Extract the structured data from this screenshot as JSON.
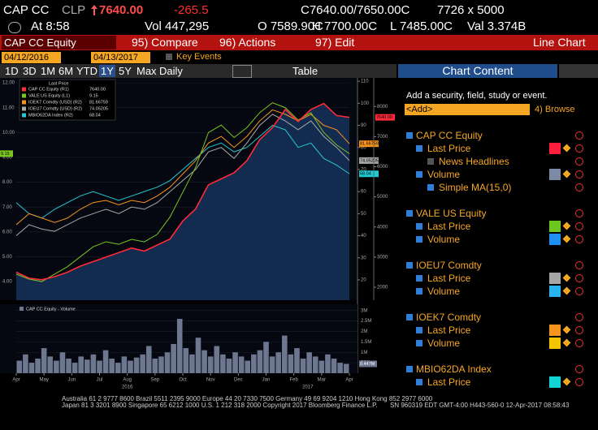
{
  "header": {
    "ticker": "CAP CC",
    "currency": "CLP",
    "price": "7640.00",
    "change": "-265.5",
    "bid_ask": "C7640.00/7650.00C",
    "size": "7726 x 5000",
    "time": "At 8:58",
    "volume": "Vol 447,295",
    "open": "O 7589.90C",
    "high": "H 7700.00C",
    "low": "L 7485.00C",
    "value": "Val 3.374B"
  },
  "toolbar": {
    "security": "CAP CC Equity",
    "compare": "95) Compare",
    "actions": "96) Actions",
    "edit": "97) Edit",
    "view": "Line Chart",
    "start_date": "04/12/2016",
    "end_date": "04/13/2017",
    "key_events": "Key Events",
    "periods": [
      "1D",
      "3D",
      "1M",
      "6M",
      "YTD",
      "1Y",
      "5Y",
      "Max"
    ],
    "active_period": 5,
    "frequency": "Daily",
    "table": "Table"
  },
  "chart_data": {
    "type": "line",
    "legend_title": "Last Price",
    "months": [
      "Apr",
      "May",
      "Jun",
      "Jul",
      "Aug",
      "Sep",
      "Oct",
      "Nov",
      "Dec",
      "Jan",
      "Feb",
      "Mar",
      "Apr"
    ],
    "years": [
      "2016",
      "2017"
    ],
    "ylim": [
      3.25,
      12.2
    ],
    "yticks": [
      {
        "value": 4,
        "label": "4.00"
      },
      {
        "value": 5,
        "label": "5.00"
      },
      {
        "value": 6,
        "label": "6.00"
      },
      {
        "value": 7,
        "label": "7.00"
      },
      {
        "value": 8,
        "label": "8.00"
      },
      {
        "value": 9,
        "label": "9.00"
      },
      {
        "value": 10,
        "label": "10.00"
      },
      {
        "value": 11,
        "label": "11.00"
      },
      {
        "value": 12,
        "label": "12.00"
      }
    ],
    "y2lim": [
      1570,
      8950
    ],
    "y2ticks": [
      2000,
      3000,
      4000,
      5000,
      6000,
      7000,
      8000
    ],
    "y3lim": [
      10.8,
      111.5
    ],
    "y3ticks": [
      20,
      30,
      40,
      50,
      60,
      70,
      80,
      90,
      100,
      110
    ],
    "series": [
      {
        "name": "MBIO62DA Index (R2)",
        "color": "#22c8d2",
        "axis": "y3",
        "last_label": "68.04",
        "values": [
          55,
          50,
          48,
          52,
          55,
          58,
          60,
          58,
          56,
          58,
          60,
          62,
          65,
          70,
          75,
          80,
          82,
          78,
          80,
          85,
          90,
          88,
          80,
          82,
          75,
          72,
          68.04
        ]
      },
      {
        "name": "IOEU7 Comdty (USD) (R2)",
        "color": "#a8a8a8",
        "axis": "y3",
        "last_label": "74.05205",
        "values": [
          40,
          45,
          43,
          42,
          45,
          48,
          50,
          52,
          50,
          53,
          52,
          55,
          60,
          65,
          70,
          78,
          80,
          75,
          82,
          90,
          95,
          92,
          88,
          92,
          85,
          80,
          74.05205
        ]
      },
      {
        "name": "IOEK7 Comdty (USD) (R2)",
        "color": "#f7931e",
        "axis": "y3",
        "last_label": "81.66759",
        "values": [
          45,
          50,
          48,
          46,
          48,
          52,
          55,
          56,
          54,
          56,
          55,
          58,
          62,
          68,
          74,
          82,
          85,
          80,
          85,
          92,
          97,
          95,
          92,
          95,
          90,
          88,
          81.66759
        ]
      },
      {
        "name": "VALE US Equity (L1)",
        "color": "#7ac520",
        "axis": "y",
        "last_label": "9.15",
        "values": [
          4.3,
          4.1,
          4.0,
          4.3,
          4.6,
          5.0,
          5.4,
          5.6,
          5.5,
          5.7,
          5.6,
          5.9,
          6.6,
          7.6,
          8.6,
          10.0,
          10.3,
          9.8,
          10.2,
          10.8,
          11.2,
          11.0,
          10.5,
          10.8,
          10.0,
          9.5,
          9.15
        ]
      },
      {
        "name": "CAP CC Equity (R1)",
        "color": "#ff2a3a",
        "axis": "y2",
        "last_label": "7640.00",
        "values": [
          2500,
          2300,
          2250,
          2350,
          2500,
          2700,
          2850,
          3000,
          3150,
          3300,
          3200,
          3400,
          3600,
          4200,
          4600,
          5400,
          5600,
          5800,
          6200,
          6900,
          7300,
          7900,
          7500,
          7900,
          8100,
          7700,
          7640
        ]
      }
    ]
  },
  "volume_chart": {
    "type": "bar",
    "title": "CAP CC Equity - Volume",
    "last_label": "0.447M",
    "color": "#6d7790",
    "ylim": [
      0,
      3300000
    ],
    "yticks": [
      {
        "value": 500000,
        "label": "500k"
      },
      {
        "value": 1000000,
        "label": "1M"
      },
      {
        "value": 1500000,
        "label": "1.5M"
      },
      {
        "value": 2000000,
        "label": "2M"
      },
      {
        "value": 2500000,
        "label": "2.5M"
      },
      {
        "value": 3000000,
        "label": "3M"
      }
    ],
    "values": [
      600000,
      900000,
      500000,
      700000,
      1200000,
      800000,
      600000,
      1000000,
      700000,
      500000,
      800000,
      650000,
      900000,
      600000,
      1100000,
      700000,
      500000,
      800000,
      600000,
      750000,
      900000,
      1300000,
      700000,
      800000,
      1000000,
      1400000,
      2600000,
      1200000,
      900000,
      1700000,
      1100000,
      800000,
      1300000,
      900000,
      700000,
      1000000,
      800000,
      600000,
      900000,
      1100000,
      1500000,
      800000,
      1000000,
      1800000,
      900000,
      1200000,
      700000,
      1000000,
      800000,
      600000,
      900000,
      700000,
      500000,
      447295
    ]
  },
  "panel": {
    "title": "Chart Content",
    "prompt": "Add a security, field, study or event.",
    "add": "<Add>",
    "browse": "4) Browse",
    "groups": [
      {
        "name": "CAP CC Equity",
        "items": [
          {
            "name": "Last Price",
            "color": "#ff1f3d"
          },
          {
            "name": "News Headlines"
          },
          {
            "name": "Volume",
            "color": "#7d8aa6"
          },
          {
            "name": "Simple MA(15,0)"
          }
        ]
      },
      {
        "name": "VALE US Equity",
        "items": [
          {
            "name": "Last Price",
            "color": "#6cc81e"
          },
          {
            "name": "Volume",
            "color": "#1f8ff0"
          }
        ]
      },
      {
        "name": "IOEU7 Comdty",
        "items": [
          {
            "name": "Last Price",
            "color": "#a6a6a6"
          },
          {
            "name": "Volume",
            "color": "#27b4f0"
          }
        ]
      },
      {
        "name": "IOEK7 Comdty",
        "items": [
          {
            "name": "Last Price",
            "color": "#f7941d"
          },
          {
            "name": "Volume",
            "color": "#f5c400"
          }
        ]
      },
      {
        "name": "MBIO62DA Index",
        "items": [
          {
            "name": "Last Price",
            "color": "#12d4d4"
          }
        ]
      }
    ]
  },
  "footer": [
    "Australia 61 2 9777 8600 Brazil 5511 2395 9000 Europe 44 20 7330 7500 Germany 49 69 9204 1210 Hong Kong 852 2977 6000",
    "Japan 81 3 3201 8900 Singapore 65 6212 1000 U.S. 1 212 318 2000 Copyright 2017 Bloomberg Finance L.P.",
    "SN 960319 EDT GMT-4:00 H443-560-0 12-Apr-2017 08:58:43"
  ]
}
